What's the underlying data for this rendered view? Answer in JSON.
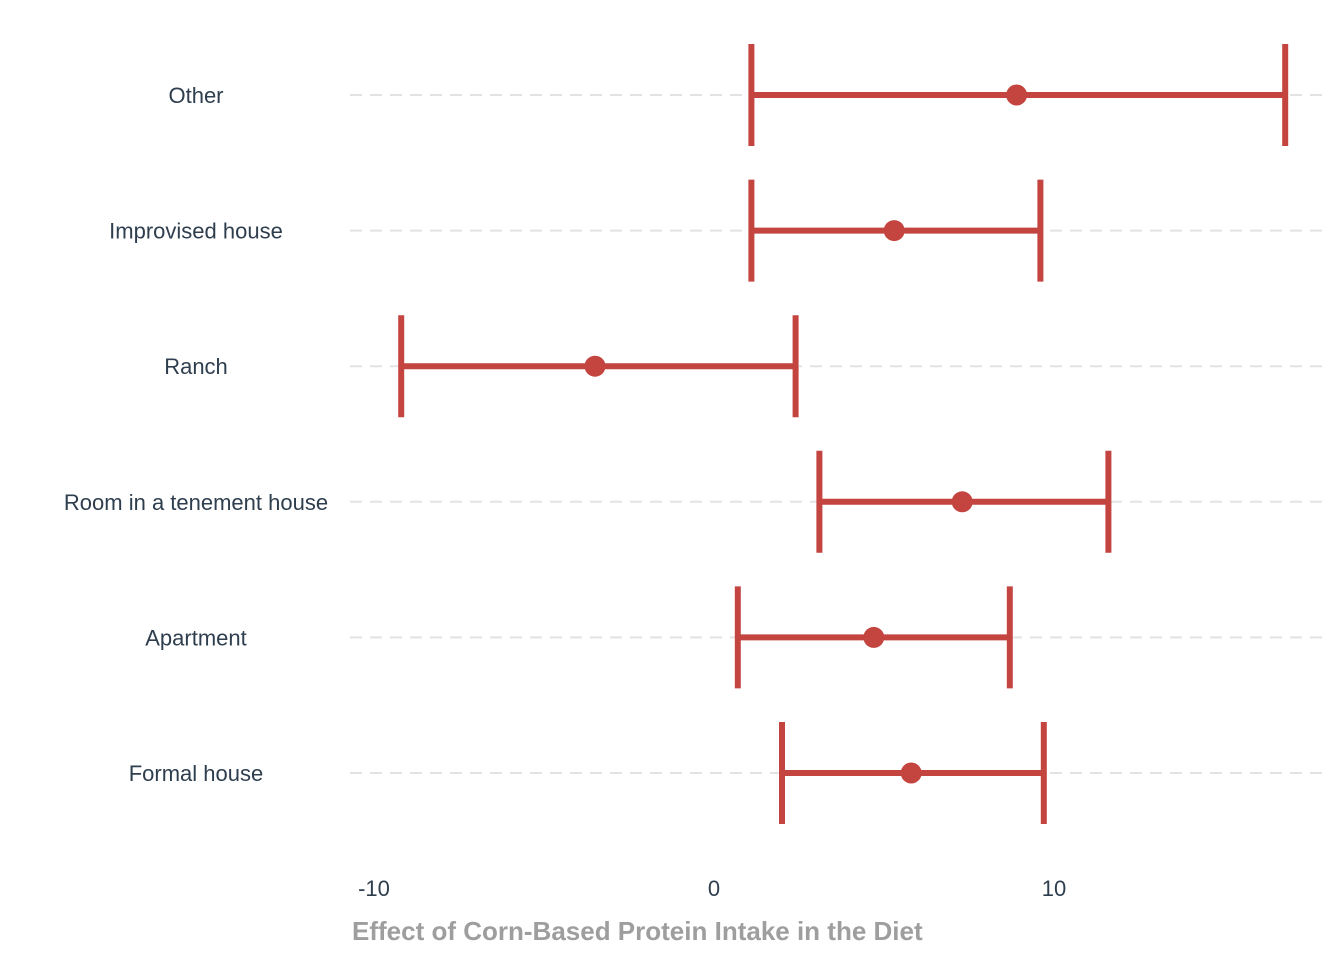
{
  "chart_data": {
    "type": "forest",
    "xlabel": "Effect of Corn-Based Protein Intake in the Diet",
    "xlim": [
      -11,
      18
    ],
    "x_ticks": [
      {
        "value": -10,
        "label": "-10"
      },
      {
        "value": 0,
        "label": "0"
      },
      {
        "value": 10,
        "label": "10"
      }
    ],
    "grid": {
      "horizontal": true,
      "vertical": false,
      "style": "dashed"
    },
    "colors": {
      "marker": "#c44440",
      "grid": "#e3e3e3",
      "text": "#2e3e4e",
      "axis_title": "#9e9e9e"
    },
    "categories": [
      "Other",
      "Improvised house",
      "Ranch",
      "Room in a tenement house",
      "Apartment",
      "Formal house"
    ],
    "estimates": [
      8.9,
      5.3,
      -3.5,
      7.3,
      4.7,
      5.8
    ],
    "lower": [
      1.1,
      1.1,
      -9.2,
      3.1,
      0.7,
      2.0
    ],
    "upper": [
      16.8,
      9.6,
      2.4,
      11.6,
      8.7,
      9.7
    ]
  }
}
